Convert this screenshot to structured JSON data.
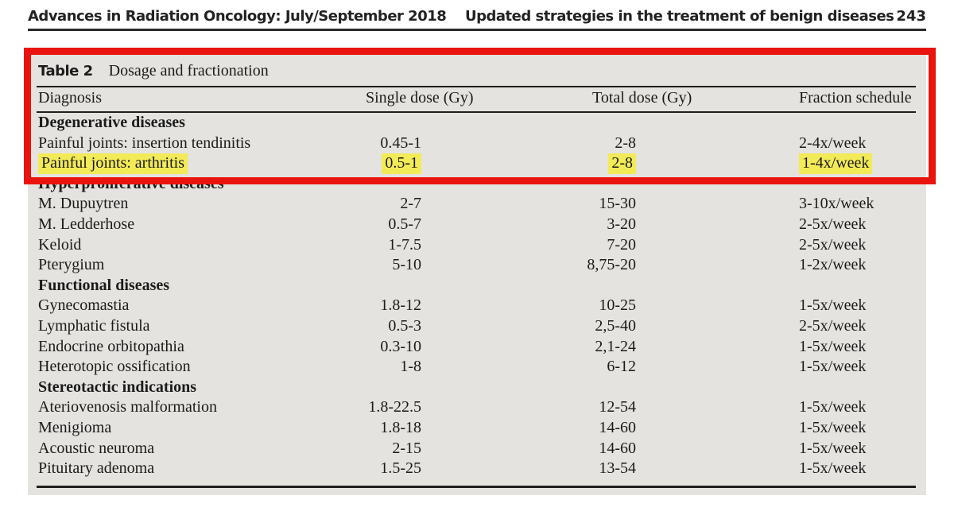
{
  "page_header": {
    "journal": "Advances in Radiation Oncology: July/September 2018",
    "article": "Updated strategies in the treatment of benign diseases",
    "page_number": "243"
  },
  "table": {
    "label": "Table 2",
    "caption": "Dosage and fractionation",
    "columns": [
      "Diagnosis",
      "Single dose (Gy)",
      "Total dose (Gy)",
      "Fraction schedule"
    ],
    "rows": [
      {
        "type": "section",
        "diagnosis": "Degenerative diseases"
      },
      {
        "type": "data",
        "diagnosis": "Painful joints: insertion tendinitis",
        "single": "0.45-1",
        "total": "2-8",
        "fraction": "2-4x/week",
        "highlighted": false
      },
      {
        "type": "data",
        "diagnosis": "Painful joints: arthritis",
        "single": "0.5-1",
        "total": "2-8",
        "fraction": "1-4x/week",
        "highlighted": true
      },
      {
        "type": "section",
        "diagnosis": "Hyperproliferative diseases"
      },
      {
        "type": "data",
        "diagnosis": "M. Dupuytren",
        "single": "2-7",
        "total": "15-30",
        "fraction": "3-10x/week",
        "highlighted": false
      },
      {
        "type": "data",
        "diagnosis": "M. Ledderhose",
        "single": "0.5-7",
        "total": "3-20",
        "fraction": "2-5x/week",
        "highlighted": false
      },
      {
        "type": "data",
        "diagnosis": "Keloid",
        "single": "1-7.5",
        "total": "7-20",
        "fraction": "2-5x/week",
        "highlighted": false
      },
      {
        "type": "data",
        "diagnosis": "Pterygium",
        "single": "5-10",
        "total": "8,75-20",
        "fraction": "1-2x/week",
        "highlighted": false
      },
      {
        "type": "section",
        "diagnosis": "Functional diseases"
      },
      {
        "type": "data",
        "diagnosis": "Gynecomastia",
        "single": "1.8-12",
        "total": "10-25",
        "fraction": "1-5x/week",
        "highlighted": false
      },
      {
        "type": "data",
        "diagnosis": "Lymphatic fistula",
        "single": "0.5-3",
        "total": "2,5-40",
        "fraction": "2-5x/week",
        "highlighted": false
      },
      {
        "type": "data",
        "diagnosis": "Endocrine orbitopathia",
        "single": "0.3-10",
        "total": "2,1-24",
        "fraction": "1-5x/week",
        "highlighted": false
      },
      {
        "type": "data",
        "diagnosis": "Heterotopic ossification",
        "single": "1-8",
        "total": "6-12",
        "fraction": "1-5x/week",
        "highlighted": false
      },
      {
        "type": "section",
        "diagnosis": "Stereotactic indications"
      },
      {
        "type": "data",
        "diagnosis": "Ateriovenosis malformation",
        "single": "1.8-22.5",
        "total": "12-54",
        "fraction": "1-5x/week",
        "highlighted": false
      },
      {
        "type": "data",
        "diagnosis": "Menigioma",
        "single": "1.8-18",
        "total": "14-60",
        "fraction": "1-5x/week",
        "highlighted": false
      },
      {
        "type": "data",
        "diagnosis": "Acoustic neuroma",
        "single": "2-15",
        "total": "14-60",
        "fraction": "1-5x/week",
        "highlighted": false
      },
      {
        "type": "data",
        "diagnosis": "Pituitary adenoma",
        "single": "1.5-25",
        "total": "13-54",
        "fraction": "1-5x/week",
        "highlighted": false
      }
    ]
  },
  "annotations": {
    "red_box_color": "#ea140e",
    "highlight_color": "#f2eb57",
    "panel_background": "#e4e3df"
  }
}
